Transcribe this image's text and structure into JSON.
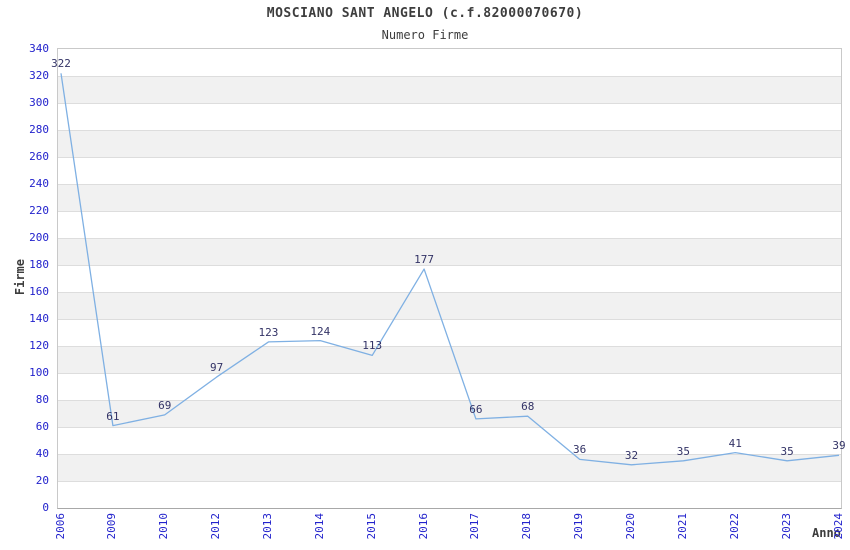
{
  "chart_data": {
    "type": "line",
    "title": "MOSCIANO SANT ANGELO (c.f.82000070670)",
    "subtitle": "Numero Firme",
    "xlabel": "Anno",
    "ylabel": "Firme",
    "categories": [
      "2006",
      "2009",
      "2010",
      "2012",
      "2013",
      "2014",
      "2015",
      "2016",
      "2017",
      "2018",
      "2019",
      "2020",
      "2021",
      "2022",
      "2023",
      "2024"
    ],
    "values": [
      322,
      61,
      69,
      97,
      123,
      124,
      113,
      177,
      66,
      68,
      36,
      32,
      35,
      41,
      35,
      39
    ],
    "ylim": [
      0,
      340
    ],
    "ytick_step": 20,
    "grid": "horizontal-alternating-bands",
    "legend": "none",
    "colors": {
      "line": "#7fb0e3",
      "tick_label": "#2222cc",
      "data_label": "#333366",
      "band": "#f1f1f1",
      "grid_line": "#dddddd",
      "plot_border": "#c9c9c9",
      "title_text": "#3d3d3d"
    }
  }
}
